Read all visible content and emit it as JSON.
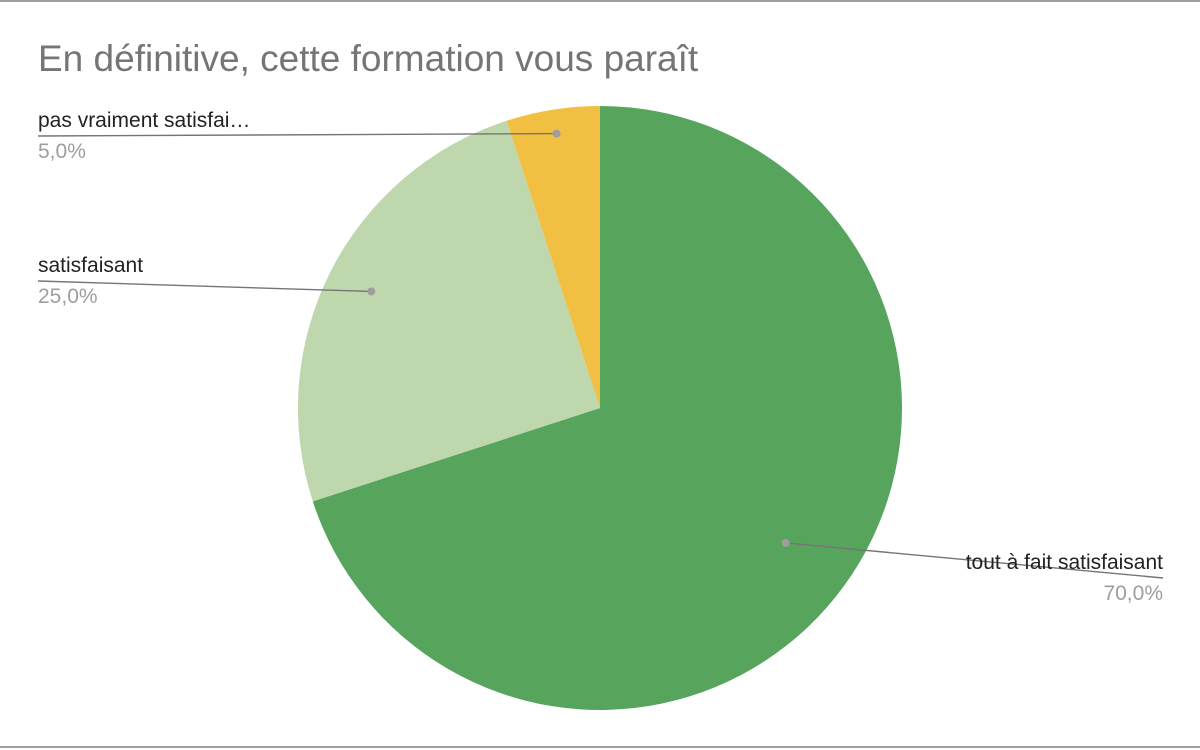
{
  "chart_data": {
    "type": "pie",
    "title": "En définitive, cette formation vous paraît",
    "slices": [
      {
        "label": "tout à fait satisfaisant",
        "value": 70.0,
        "percent_label": "70,0%",
        "color": "#57a55d"
      },
      {
        "label": "satisfaisant",
        "value": 25.0,
        "percent_label": "25,0%",
        "color": "#bed7ad"
      },
      {
        "label": "pas vraiment satisfai…",
        "value": 5.0,
        "percent_label": "5,0%",
        "color": "#f1bf41"
      }
    ],
    "start_angle": "12 o'clock",
    "direction": "clockwise",
    "legend": "none",
    "label_style": "leader-lines"
  }
}
